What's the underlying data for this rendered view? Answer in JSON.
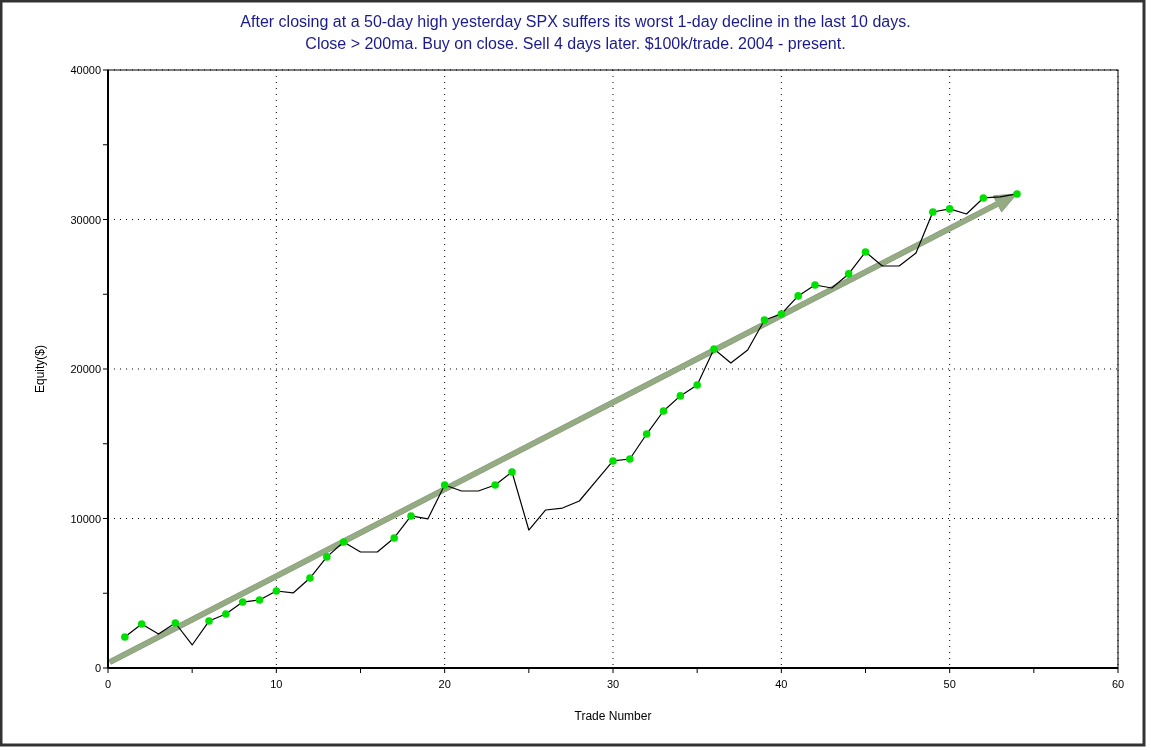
{
  "chart_data": {
    "type": "line",
    "title": "After closing at a 50-day high yesterday SPX suffers its worst 1-day decline in the last 10 days.",
    "subtitle": "Close > 200ma. Buy on close. Sell 4 days later. $100k/trade. 2004 - present.",
    "xlabel": "Trade Number",
    "ylabel": "Equity($)",
    "x": [
      1,
      2,
      3,
      4,
      5,
      6,
      7,
      8,
      9,
      10,
      11,
      12,
      13,
      14,
      15,
      16,
      17,
      18,
      19,
      20,
      21,
      22,
      23,
      24,
      25,
      26,
      27,
      28,
      29,
      30,
      31,
      32,
      33,
      34,
      35,
      36,
      37,
      38,
      39,
      40,
      41,
      42,
      43,
      44,
      45,
      46,
      47,
      48,
      49,
      50,
      51,
      52,
      53,
      54
    ],
    "series": [
      {
        "color": "#000000",
        "values": [
          2070,
          2940,
          2270,
          3010,
          1540,
          3140,
          3610,
          4410,
          4550,
          5150,
          5020,
          6020,
          7430,
          8430,
          7760,
          7760,
          8700,
          10170,
          9970,
          12240,
          11840,
          11840,
          12240,
          13110,
          9230,
          10570,
          10700,
          11170,
          12510,
          13850,
          13980,
          15650,
          17190,
          18200,
          18930,
          21340,
          20400,
          21270,
          23280,
          23680,
          24890,
          25620,
          25420,
          26360,
          27830,
          26890,
          26890,
          27760,
          30500,
          30710,
          30370,
          31440,
          31510,
          31710
        ]
      },
      {
        "type": "scatter",
        "color": "#00e000",
        "marker": "circle",
        "x": [
          1,
          2,
          4,
          6,
          7,
          8,
          9,
          10,
          12,
          13,
          14,
          17,
          18,
          20,
          23,
          24,
          30,
          31,
          32,
          33,
          34,
          35,
          36,
          39,
          40,
          41,
          42,
          44,
          45,
          49,
          50,
          52,
          54
        ],
        "values": [
          2070,
          2940,
          3010,
          3140,
          3610,
          4410,
          4550,
          5150,
          6020,
          7430,
          8430,
          8700,
          10170,
          12240,
          12240,
          13110,
          13850,
          13980,
          15650,
          17190,
          18200,
          18930,
          21340,
          23280,
          23680,
          24890,
          25620,
          26360,
          27830,
          30500,
          30710,
          31440,
          31710
        ]
      }
    ],
    "xlim": [
      0,
      60
    ],
    "xticks": [
      0,
      {
        "value": 5,
        "label": null
      },
      10,
      {
        "value": 15,
        "label": null
      },
      20,
      {
        "value": 25,
        "label": null
      },
      30,
      {
        "value": 35,
        "label": null
      },
      40,
      {
        "value": 45,
        "label": null
      },
      50,
      {
        "value": 55,
        "label": null
      },
      60
    ],
    "ylim": [
      0,
      40000
    ],
    "yticks": [
      0,
      {
        "value": 5000,
        "label": null
      },
      10000,
      {
        "value": 15000,
        "label": null
      },
      20000,
      {
        "value": 25000,
        "label": null
      },
      30000,
      {
        "value": 35000,
        "label": null
      },
      40000
    ],
    "grid": true
  }
}
